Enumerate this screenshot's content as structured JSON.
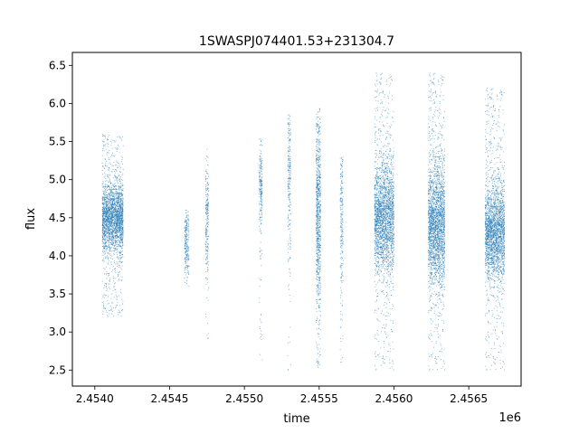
{
  "chart_data": {
    "type": "scatter",
    "title": "1SWASPJ074401.53+231304.7",
    "xlabel": "time",
    "ylabel": "flux",
    "x_offset_label": "1e6",
    "x_scale": 1000000,
    "xlim": [
      2.45385,
      2.45685
    ],
    "ylim": [
      2.29,
      6.67
    ],
    "xticks": [
      2.454,
      2.4545,
      2.455,
      2.4555,
      2.456,
      2.4565
    ],
    "xtick_labels": [
      "2.4540",
      "2.4545",
      "2.4550",
      "2.4555",
      "2.4560",
      "2.4565"
    ],
    "yticks": [
      2.5,
      3.0,
      3.5,
      4.0,
      4.5,
      5.0,
      5.5,
      6.0,
      6.5
    ],
    "ytick_labels": [
      "2.5",
      "3.0",
      "3.5",
      "4.0",
      "4.5",
      "5.0",
      "5.5",
      "6.0",
      "6.5"
    ],
    "grid": false,
    "legend": "none",
    "point_color": "#1f77b4",
    "series": [
      {
        "clusters": [
          {
            "x_range": [
              2.45405,
              2.45419
            ],
            "y_center": 4.5,
            "y_spread": 0.22,
            "y_range": [
              3.2,
              5.6
            ],
            "density": "high"
          },
          {
            "x_range": [
              2.4546,
              2.45463
            ],
            "y_center": 4.15,
            "y_spread": 0.2,
            "y_range": [
              3.6,
              4.6
            ],
            "density": "low"
          },
          {
            "x_range": [
              2.45474,
              2.45476
            ],
            "y_center": 4.5,
            "y_spread": 0.4,
            "y_range": [
              2.9,
              5.4
            ],
            "density": "low"
          },
          {
            "x_range": [
              2.4551,
              2.45512
            ],
            "y_center": 4.9,
            "y_spread": 0.3,
            "y_range": [
              2.55,
              5.55
            ],
            "density": "low"
          },
          {
            "x_range": [
              2.45529,
              2.45531
            ],
            "y_center": 5.0,
            "y_spread": 0.5,
            "y_range": [
              2.5,
              5.85
            ],
            "density": "low"
          },
          {
            "x_range": [
              2.45548,
              2.45551
            ],
            "y_center": 4.6,
            "y_spread": 0.6,
            "y_range": [
              2.45,
              5.95
            ],
            "density": "medium"
          },
          {
            "x_range": [
              2.45564,
              2.45566
            ],
            "y_center": 4.5,
            "y_spread": 0.6,
            "y_range": [
              2.6,
              5.3
            ],
            "density": "low"
          },
          {
            "x_range": [
              2.45587,
              2.456
            ],
            "y_center": 4.5,
            "y_spread": 0.35,
            "y_range": [
              2.5,
              6.4
            ],
            "density": "high"
          },
          {
            "x_range": [
              2.45623,
              2.45634
            ],
            "y_center": 4.4,
            "y_spread": 0.38,
            "y_range": [
              2.5,
              6.4
            ],
            "density": "high"
          },
          {
            "x_range": [
              2.45661,
              2.45674
            ],
            "y_center": 4.3,
            "y_spread": 0.3,
            "y_range": [
              2.5,
              6.2
            ],
            "density": "high"
          }
        ]
      }
    ]
  }
}
